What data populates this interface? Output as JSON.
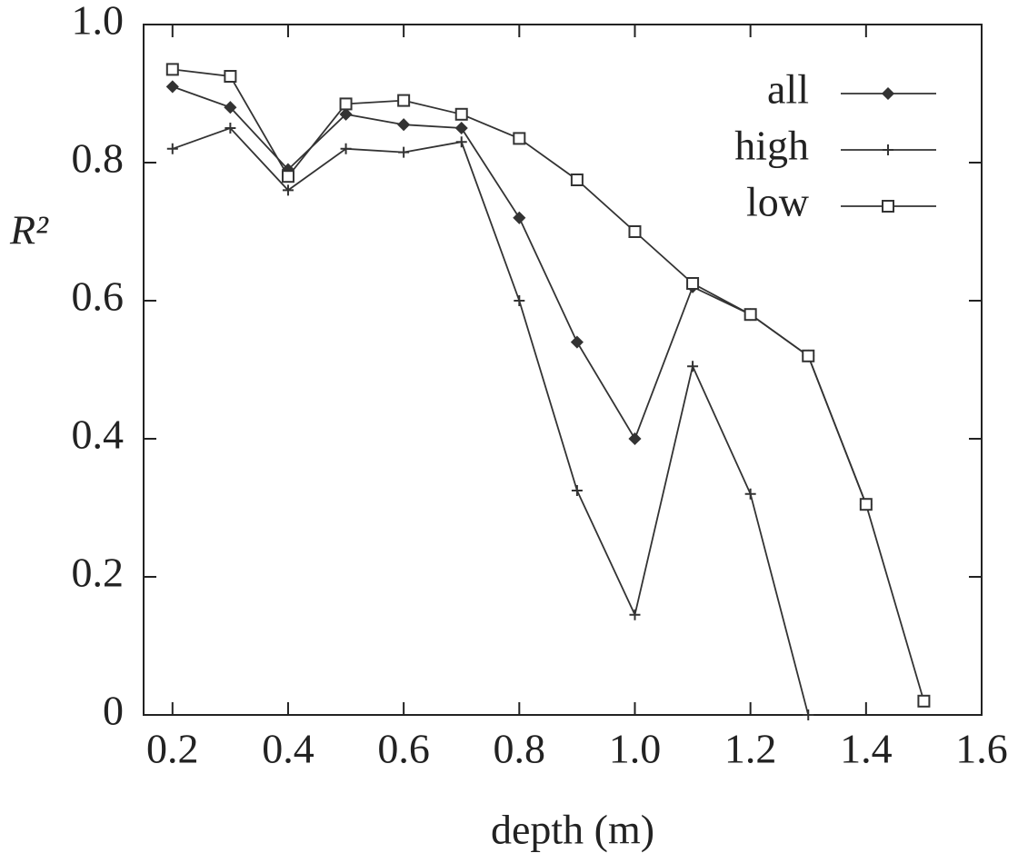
{
  "chart_data": {
    "type": "line",
    "xlabel": "depth (m)",
    "ylabel": "R²",
    "x": [
      0.2,
      0.3,
      0.4,
      0.5,
      0.6,
      0.7,
      0.8,
      0.9,
      1.0,
      1.1,
      1.2,
      1.3,
      1.4,
      1.5
    ],
    "series": [
      {
        "name": "all",
        "color": "#333333",
        "marker": "diamond",
        "values": [
          0.91,
          0.88,
          0.79,
          0.87,
          0.855,
          0.85,
          0.72,
          0.54,
          0.4,
          0.62,
          0.58,
          0.52,
          0.305,
          null
        ]
      },
      {
        "name": "high",
        "color": "#333333",
        "marker": "plus",
        "values": [
          0.82,
          0.85,
          0.76,
          0.82,
          0.815,
          0.83,
          0.6,
          0.325,
          0.145,
          0.505,
          0.32,
          0.0,
          null,
          null
        ]
      },
      {
        "name": "low",
        "color": "#333333",
        "marker": "square",
        "values": [
          0.935,
          0.925,
          0.78,
          0.885,
          0.89,
          0.87,
          0.835,
          0.775,
          0.7,
          0.625,
          0.58,
          0.52,
          0.305,
          0.02
        ]
      }
    ],
    "xlim": [
      0.15,
      1.6
    ],
    "ylim": [
      0,
      1.0
    ],
    "xticks": [
      0.2,
      0.4,
      0.6,
      0.8,
      {
        "value": 1,
        "label": "1.0"
      },
      1.2,
      1.4,
      1.6
    ],
    "yticks": [
      0,
      0.2,
      0.4,
      0.6,
      0.8,
      {
        "value": 1,
        "label": "1.0"
      }
    ],
    "grid": false,
    "legend": "upper right"
  }
}
